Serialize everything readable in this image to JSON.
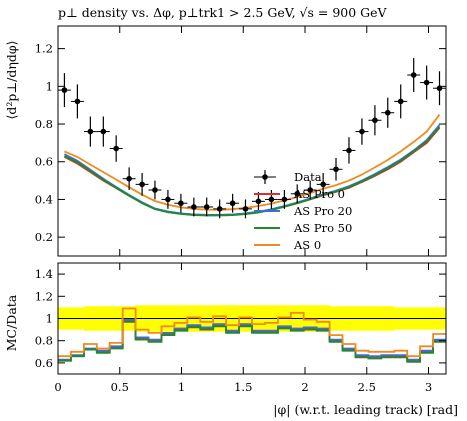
{
  "chart_data": [
    {
      "type": "line",
      "title": "p⊥ density vs. Δφ, p⊥trk1 > 2.5 GeV, √s = 900 GeV",
      "ylabel": "⟨d²p⊥/dηdφ⟩",
      "xlim": [
        0,
        3.1416
      ],
      "ylim": [
        0.1,
        1.32
      ],
      "yticks": [
        0.2,
        0.4,
        0.6,
        0.8,
        1,
        1.2
      ],
      "ytick_labels": [
        "0.2",
        "0.4",
        "0.6",
        "0.8",
        "1",
        "1.2"
      ],
      "legend_position": "lower-right",
      "data": {
        "name": "Data",
        "x": [
          0.052,
          0.157,
          0.262,
          0.367,
          0.471,
          0.576,
          0.681,
          0.785,
          0.89,
          0.995,
          1.1,
          1.204,
          1.309,
          1.414,
          1.518,
          1.623,
          1.728,
          1.833,
          1.937,
          2.042,
          2.147,
          2.251,
          2.356,
          2.461,
          2.566,
          2.67,
          2.775,
          2.88,
          2.985,
          3.089
        ],
        "y": [
          0.98,
          0.92,
          0.76,
          0.76,
          0.67,
          0.51,
          0.48,
          0.45,
          0.4,
          0.38,
          0.36,
          0.36,
          0.35,
          0.38,
          0.35,
          0.39,
          0.4,
          0.4,
          0.43,
          0.45,
          0.48,
          0.56,
          0.66,
          0.76,
          0.82,
          0.86,
          0.92,
          1.06,
          1.02,
          0.99
        ],
        "err": [
          0.09,
          0.09,
          0.08,
          0.08,
          0.07,
          0.06,
          0.06,
          0.05,
          0.05,
          0.05,
          0.05,
          0.05,
          0.05,
          0.05,
          0.05,
          0.05,
          0.05,
          0.05,
          0.05,
          0.05,
          0.06,
          0.06,
          0.07,
          0.07,
          0.08,
          0.08,
          0.09,
          0.09,
          0.09,
          0.09
        ]
      },
      "series": [
        {
          "name": "AS Pro 0",
          "color": "#dd2f2f",
          "y": [
            0.625,
            0.59,
            0.545,
            0.5,
            0.46,
            0.42,
            0.382,
            0.35,
            0.335,
            0.325,
            0.32,
            0.318,
            0.318,
            0.32,
            0.325,
            0.333,
            0.345,
            0.362,
            0.38,
            0.4,
            0.422,
            0.44,
            0.462,
            0.492,
            0.525,
            0.56,
            0.6,
            0.65,
            0.7,
            0.78
          ]
        },
        {
          "name": "AS Pro 20",
          "color": "#3a6fd6",
          "y": [
            0.64,
            0.605,
            0.558,
            0.51,
            0.466,
            0.424,
            0.385,
            0.352,
            0.336,
            0.326,
            0.32,
            0.318,
            0.318,
            0.32,
            0.326,
            0.335,
            0.348,
            0.365,
            0.384,
            0.405,
            0.428,
            0.447,
            0.47,
            0.5,
            0.535,
            0.572,
            0.612,
            0.66,
            0.715,
            0.795
          ]
        },
        {
          "name": "AS Pro 50",
          "color": "#1f8a2b",
          "y": [
            0.63,
            0.597,
            0.551,
            0.504,
            0.462,
            0.42,
            0.38,
            0.348,
            0.332,
            0.323,
            0.317,
            0.315,
            0.315,
            0.317,
            0.322,
            0.331,
            0.344,
            0.361,
            0.38,
            0.401,
            0.424,
            0.442,
            0.465,
            0.495,
            0.529,
            0.565,
            0.606,
            0.655,
            0.708,
            0.785
          ]
        },
        {
          "name": "AS 0",
          "color": "#f08a1c",
          "y": [
            0.655,
            0.625,
            0.585,
            0.545,
            0.505,
            0.465,
            0.425,
            0.392,
            0.372,
            0.358,
            0.35,
            0.346,
            0.345,
            0.348,
            0.355,
            0.365,
            0.378,
            0.395,
            0.413,
            0.434,
            0.457,
            0.476,
            0.5,
            0.532,
            0.57,
            0.61,
            0.655,
            0.705,
            0.76,
            0.85
          ]
        }
      ]
    },
    {
      "type": "line",
      "ylabel": "MC/Data",
      "xlabel": "|φ| (w.r.t. leading track) [rad]",
      "xlim": [
        0,
        3.1416
      ],
      "ylim": [
        0.5,
        1.5
      ],
      "yticks": [
        0.6,
        0.8,
        1,
        1.2,
        1.4
      ],
      "ytick_labels": [
        "0.6",
        "0.8",
        "1",
        "1.2",
        "1.4"
      ],
      "xticks": [
        0,
        0.5,
        1,
        1.5,
        2,
        2.5,
        3
      ],
      "xtick_labels": [
        "0",
        "0.5",
        "1",
        "1.5",
        "2",
        "2.5",
        "3"
      ],
      "reference_line": 1,
      "band": {
        "color": "#ffff00",
        "lo": [
          0.9,
          0.9,
          0.89,
          0.89,
          0.89,
          0.89,
          0.88,
          0.88,
          0.88,
          0.88,
          0.88,
          0.88,
          0.88,
          0.88,
          0.88,
          0.88,
          0.88,
          0.88,
          0.88,
          0.88,
          0.88,
          0.89,
          0.89,
          0.89,
          0.89,
          0.89,
          0.9,
          0.9,
          0.9,
          0.9
        ],
        "hi": [
          1.1,
          1.1,
          1.11,
          1.11,
          1.11,
          1.11,
          1.12,
          1.12,
          1.12,
          1.12,
          1.12,
          1.12,
          1.12,
          1.12,
          1.12,
          1.12,
          1.12,
          1.12,
          1.12,
          1.12,
          1.12,
          1.11,
          1.11,
          1.11,
          1.11,
          1.11,
          1.1,
          1.1,
          1.1,
          1.1
        ]
      },
      "series": [
        {
          "name": "AS Pro 0",
          "color": "#dd2f2f",
          "y": [
            0.62,
            0.66,
            0.72,
            0.7,
            0.74,
            0.98,
            0.82,
            0.8,
            0.86,
            0.9,
            0.93,
            0.91,
            0.94,
            0.88,
            0.94,
            0.88,
            0.88,
            0.92,
            0.9,
            0.91,
            0.9,
            0.8,
            0.72,
            0.66,
            0.65,
            0.66,
            0.66,
            0.62,
            0.7,
            0.8
          ]
        },
        {
          "name": "AS Pro 20",
          "color": "#3a6fd6",
          "y": [
            0.63,
            0.67,
            0.73,
            0.71,
            0.75,
            0.99,
            0.83,
            0.81,
            0.87,
            0.91,
            0.94,
            0.92,
            0.95,
            0.89,
            0.95,
            0.89,
            0.89,
            0.93,
            0.91,
            0.92,
            0.91,
            0.81,
            0.73,
            0.67,
            0.66,
            0.67,
            0.67,
            0.63,
            0.71,
            0.81
          ]
        },
        {
          "name": "AS Pro 50",
          "color": "#1f8a2b",
          "y": [
            0.62,
            0.66,
            0.72,
            0.69,
            0.73,
            0.97,
            0.81,
            0.79,
            0.85,
            0.89,
            0.92,
            0.9,
            0.93,
            0.87,
            0.93,
            0.87,
            0.87,
            0.91,
            0.89,
            0.9,
            0.89,
            0.79,
            0.71,
            0.65,
            0.64,
            0.65,
            0.65,
            0.61,
            0.69,
            0.79
          ]
        },
        {
          "name": "AS 0",
          "color": "#f08a1c",
          "y": [
            0.66,
            0.7,
            0.77,
            0.73,
            0.78,
            1.09,
            0.9,
            0.87,
            0.93,
            0.96,
            1.01,
            0.97,
            1.02,
            0.94,
            1.01,
            0.95,
            0.96,
            1.01,
            1.05,
            0.99,
            0.97,
            0.85,
            0.77,
            0.71,
            0.7,
            0.7,
            0.71,
            0.66,
            0.75,
            0.86
          ]
        }
      ]
    }
  ]
}
